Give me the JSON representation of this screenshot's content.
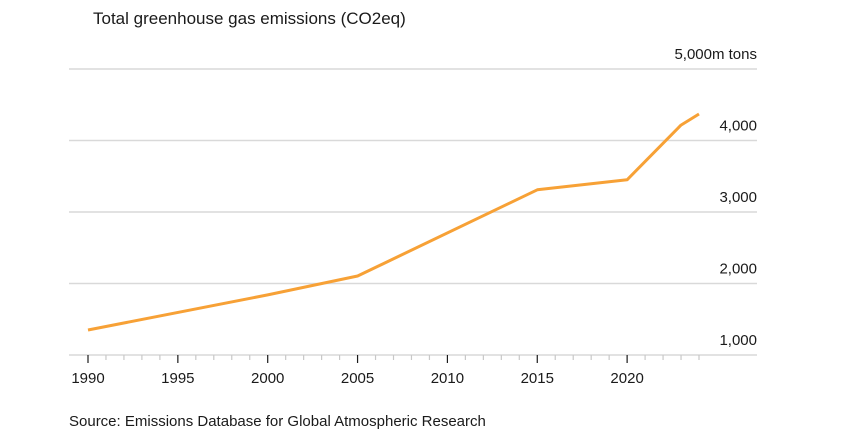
{
  "chart_data": {
    "type": "line",
    "title": "Total greenhouse gas emissions (CO2eq)",
    "xlabel": "",
    "ylabel": "",
    "y_unit_label": "5,000m tons",
    "ylim": [
      1000,
      5000
    ],
    "xlim": [
      1990,
      2024
    ],
    "y_ticks": [
      {
        "value": 5000,
        "label": "5,000m tons"
      },
      {
        "value": 4000,
        "label": "4,000"
      },
      {
        "value": 3000,
        "label": "3,000"
      },
      {
        "value": 2000,
        "label": "2,000"
      },
      {
        "value": 1000,
        "label": "1,000"
      }
    ],
    "x_ticks": [
      {
        "value": 1990,
        "label": "1990"
      },
      {
        "value": 1995,
        "label": "1995"
      },
      {
        "value": 2000,
        "label": "2000"
      },
      {
        "value": 2005,
        "label": "2005"
      },
      {
        "value": 2010,
        "label": "2010"
      },
      {
        "value": 2015,
        "label": "2015"
      },
      {
        "value": 2020,
        "label": "2020"
      }
    ],
    "grid": true,
    "series": [
      {
        "name": "Total greenhouse gas emissions",
        "color": "#f7a136",
        "x": [
          1990,
          2000,
          2005,
          2015,
          2020,
          2023,
          2024
        ],
        "values": [
          1350,
          1840,
          2105,
          3310,
          3450,
          4215,
          4370
        ]
      }
    ],
    "source": "Source: Emissions Database for Global Atmospheric Research"
  },
  "colors": {
    "line": "#f7a136",
    "grid": "#d9d9d9",
    "text": "#1a1a1a"
  }
}
